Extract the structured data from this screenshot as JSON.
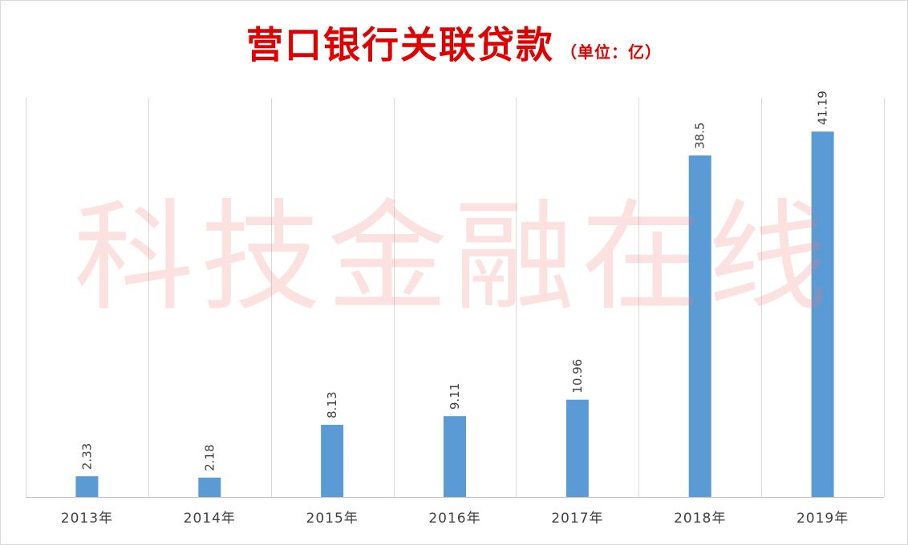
{
  "chart_data": {
    "type": "bar",
    "title": "营口银行关联贷款",
    "subtitle": "（单位：亿）",
    "categories": [
      "2013年",
      "2014年",
      "2015年",
      "2016年",
      "2017年",
      "2018年",
      "2019年"
    ],
    "values": [
      2.33,
      2.18,
      8.13,
      9.11,
      10.96,
      38.5,
      41.19
    ],
    "data_labels": [
      "2.33",
      "2.18",
      "8.13",
      "9.11",
      "10.96",
      "38.5",
      "41.19"
    ],
    "ylim": [
      0,
      45
    ],
    "xlabel": "",
    "ylabel": "",
    "bar_color": "#5b9bd5",
    "grid": "vertical",
    "legend": "none"
  },
  "watermark": "科技金融在线",
  "colors": {
    "title": "#e00000",
    "gridline": "#d9d9d9",
    "axis": "#bfbfbf",
    "watermark": "#f07878"
  }
}
